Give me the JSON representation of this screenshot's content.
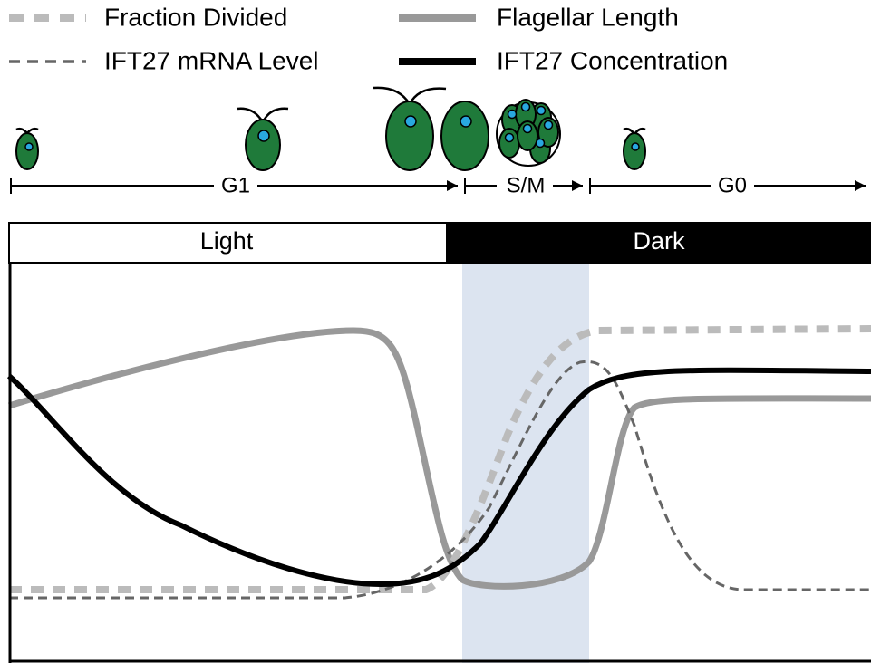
{
  "legend": {
    "fraction_divided": "Fraction Divided",
    "flagellar_length": "Flagellar Length",
    "mrna_level": "IFT27 mRNA Level",
    "concentration": "IFT27 Concentration"
  },
  "phases": [
    "G1",
    "S/M",
    "G0"
  ],
  "conditions": [
    "Light",
    "Dark"
  ]
}
